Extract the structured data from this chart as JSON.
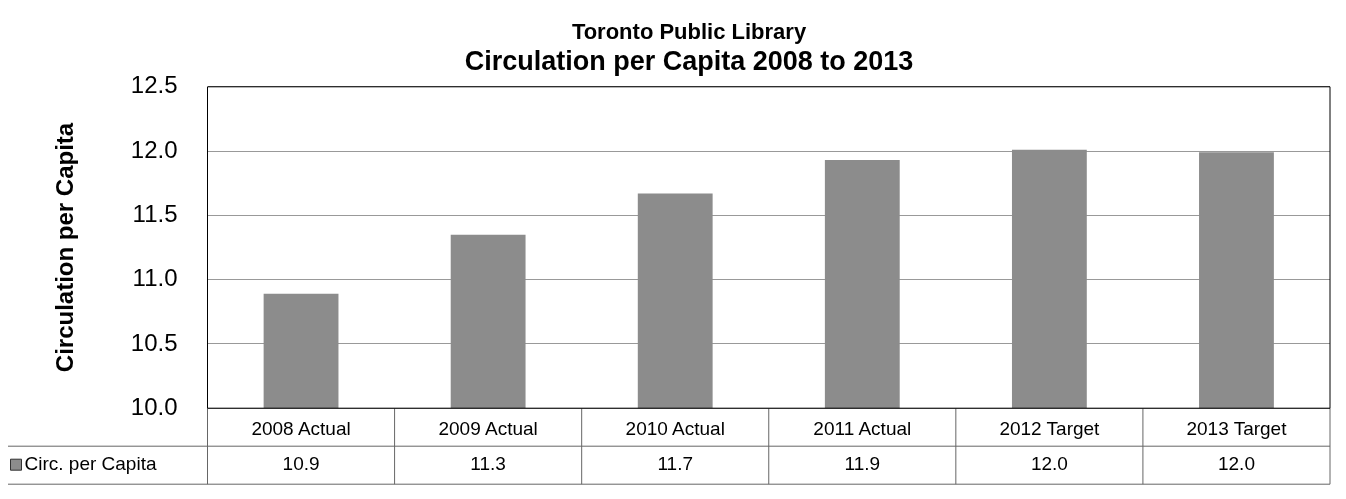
{
  "chart_data": {
    "type": "bar",
    "subtitle": "Toronto Public Library",
    "title": "Circulation per Capita 2008 to 2013",
    "ylabel": "Circulation per Capita",
    "categories": [
      "2008 Actual",
      "2009 Actual",
      "2010 Actual",
      "2011 Actual",
      "2012 Target",
      "2013 Target"
    ],
    "series": [
      {
        "name": "Circ. per Capita",
        "color": "#8c8c8c",
        "values": [
          10.89,
          11.35,
          11.67,
          11.93,
          12.01,
          11.99
        ],
        "value_labels": [
          "10.9",
          "11.3",
          "11.7",
          "11.9",
          "12.0",
          "12.0"
        ]
      }
    ],
    "ylim": [
      10.0,
      12.5
    ],
    "yticks": [
      {
        "value": 10,
        "label": "10.0"
      },
      {
        "value": 10.5,
        "label": "10.5"
      },
      {
        "value": 11,
        "label": "11.0"
      },
      {
        "value": 11.5,
        "label": "11.5"
      },
      {
        "value": 12,
        "label": "12.0"
      },
      {
        "value": 12.5,
        "label": "12.5"
      }
    ],
    "grid": "y"
  }
}
